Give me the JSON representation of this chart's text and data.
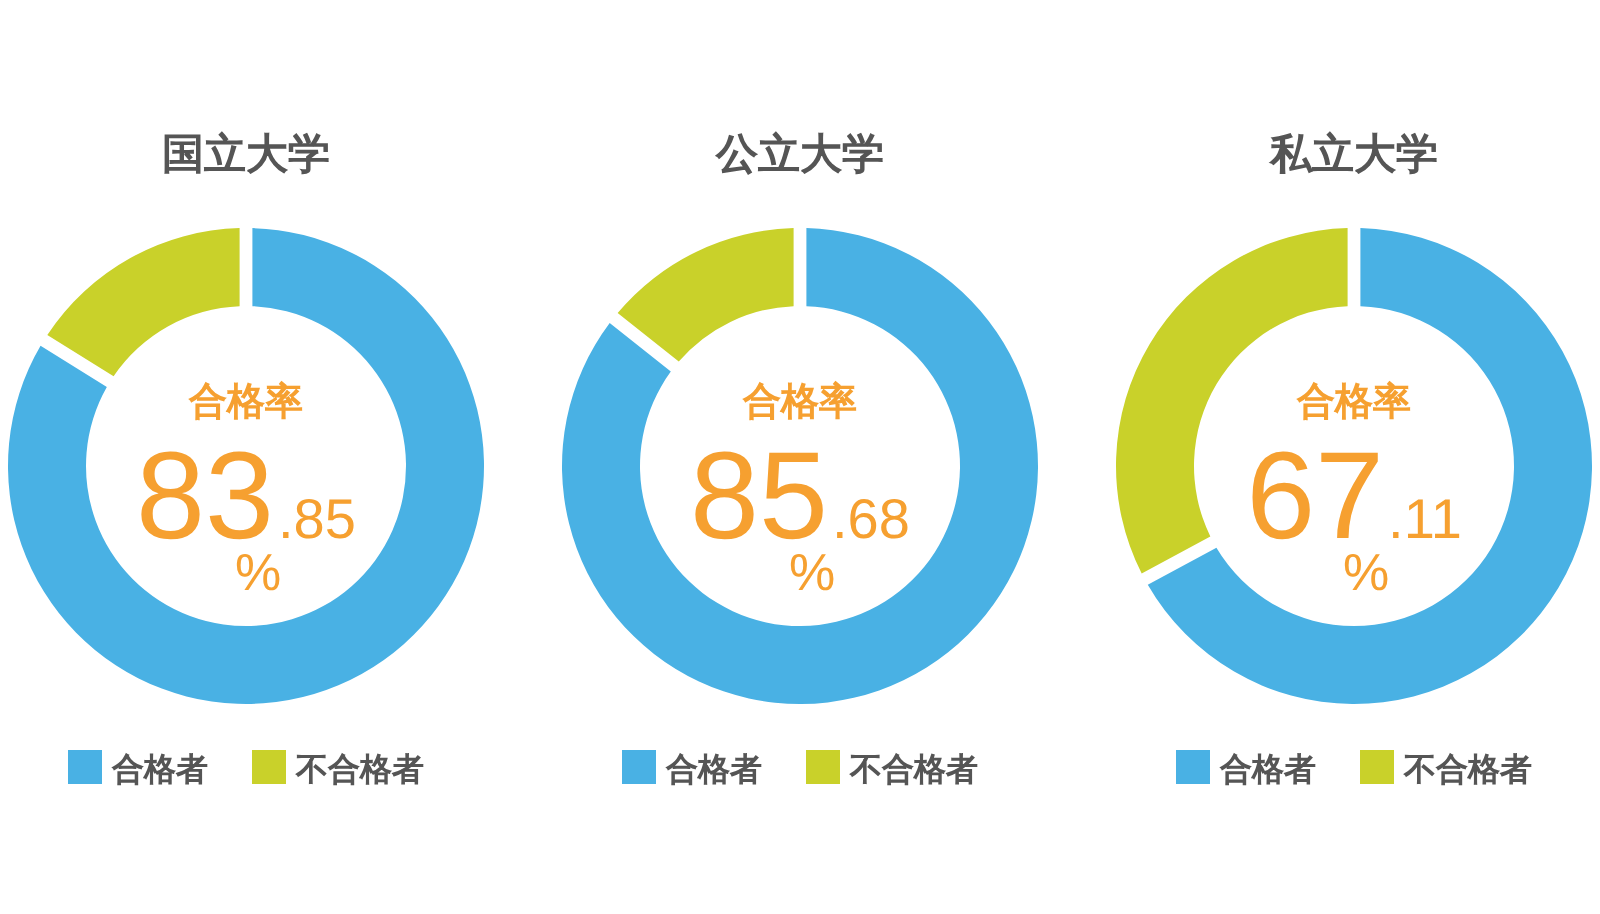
{
  "chart_data": [
    {
      "type": "donut",
      "title": "国立大学",
      "categories": [
        "合格者",
        "不合格者"
      ],
      "values": [
        83.85,
        16.15
      ],
      "colors": [
        "#49b1e4",
        "#c9d12a"
      ],
      "value_labels": [
        "83.85%",
        null
      ],
      "annotations": [
        "合格率"
      ],
      "legend": "bottom"
    },
    {
      "type": "donut",
      "title": "公立大学",
      "categories": [
        "合格者",
        "不合格者"
      ],
      "values": [
        85.68,
        14.32
      ],
      "colors": [
        "#49b1e4",
        "#c9d12a"
      ],
      "value_labels": [
        "85.68%",
        null
      ],
      "annotations": [
        "合格率"
      ],
      "legend": "bottom"
    },
    {
      "type": "donut",
      "title": "私立大学",
      "categories": [
        "合格者",
        "不合格者"
      ],
      "values": [
        67.11,
        32.89
      ],
      "colors": [
        "#49b1e4",
        "#c9d12a"
      ],
      "value_labels": [
        "67.11%",
        null
      ],
      "annotations": [
        "合格率"
      ],
      "legend": "bottom"
    }
  ]
}
